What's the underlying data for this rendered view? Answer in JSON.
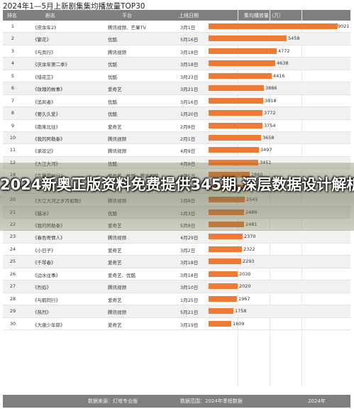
{
  "page_title": "2024年1—5月上新剧集集均播放量TOP30",
  "header": {
    "rank": "排名",
    "title": "剧名",
    "platform": "平台",
    "date": "上线日期",
    "metric": "集均播放量（万）"
  },
  "chart_data": {
    "type": "bar",
    "title": "2024年1—5月上新剧集集均播放量TOP30",
    "value_label": "集均播放量（万）",
    "xlim": [
      0,
      9021
    ],
    "rows": [
      {
        "rank": "1",
        "title": "《庆余年2》",
        "platform": "腾讯视频、芒果TV",
        "date": "3月1日",
        "value": 9021
      },
      {
        "rank": "2",
        "title": "《繁花》",
        "platform": "优酷",
        "date": "5月16日",
        "value": 5458
      },
      {
        "rank": "3",
        "title": "《与凤行》",
        "platform": "腾讯视频",
        "date": "3月18日",
        "value": 4772
      },
      {
        "rank": "4",
        "title": "《庆余年第二季》",
        "platform": "优酷",
        "date": "3月18日",
        "value": 4638
      },
      {
        "rank": "5",
        "title": "《惜花芷》",
        "platform": "优酷",
        "date": "3月23日",
        "value": 4416
      },
      {
        "rank": "6",
        "title": "《玫瑰的故事》",
        "platform": "爱奇艺",
        "date": "3月21日",
        "value": 3886
      },
      {
        "rank": "7",
        "title": "《追风者》",
        "platform": "优酷",
        "date": "3月16日",
        "value": 3818
      },
      {
        "rank": "8",
        "title": "《要久久爱》",
        "platform": "优酷",
        "date": "1月20日",
        "value": 3772
      },
      {
        "rank": "9",
        "title": "《南来北往》",
        "platform": "爱奇艺",
        "date": "2月8日",
        "value": 3754
      },
      {
        "rank": "10",
        "title": "《我的阿勒泰》",
        "platform": "腾讯视频",
        "date": "2月1日",
        "value": 3658
      },
      {
        "rank": "11",
        "title": "《承欢记》",
        "platform": "腾讯视频",
        "date": "4月9日",
        "value": 3497
      },
      {
        "rank": "12",
        "title": "《大江大河》",
        "platform": "优酷",
        "date": "4月9日",
        "value": 3451
      },
      {
        "rank": "18",
        "title": "《在暴雪时分》",
        "platform": "爱奇艺、优酷、腾讯视频",
        "date": "4月5日",
        "value": 2860
      },
      {
        "rank": "19",
        "title": "《我们的一九四四》",
        "platform": "爱奇艺",
        "date": "4月21日",
        "value": 2546
      },
      {
        "rank": "20",
        "title": "《大江大河之岁月如歌》",
        "platform": "腾讯视频",
        "date": "1月8日",
        "value": 2545
      },
      {
        "rank": "21",
        "title": "《猎冰》",
        "platform": "优酷",
        "date": "1月3日",
        "value": 2489
      },
      {
        "rank": "22",
        "title": "《我的阿勒泰》",
        "platform": "爱奇艺",
        "date": "5月8日",
        "value": 2481
      },
      {
        "rank": "23",
        "title": "《春色寄情人》",
        "platform": "腾讯视频",
        "date": "4月29日",
        "value": 2370
      },
      {
        "rank": "24",
        "title": "《小日子》",
        "platform": "爱奇艺",
        "date": "3月2日",
        "value": 2322
      },
      {
        "rank": "25",
        "title": "《千琴春》",
        "platform": "爱奇艺",
        "date": "3月18日",
        "value": 2293
      },
      {
        "rank": "26",
        "title": "《边水往事》",
        "platform": "爱奇艺、优酷",
        "date": "3月18日",
        "value": 2030
      },
      {
        "rank": "27",
        "title": "《烈焰》",
        "platform": "腾讯视频",
        "date": "3月10日",
        "value": 2020
      },
      {
        "rank": "28",
        "title": "《与鹤同行》",
        "platform": "爱奇艺",
        "date": "1月25日",
        "value": 1967
      },
      {
        "rank": "29",
        "title": "《热烈》",
        "platform": "腾讯视频",
        "date": "5月21日",
        "value": 1758
      },
      {
        "rank": "30",
        "title": "《大唐少年郎》",
        "platform": "爱奇艺",
        "date": "3月19日",
        "value": 1609
      }
    ]
  },
  "banner_text": "2024新奥正版资料免费提供345期,深层数据设计解析_超值",
  "footer": {
    "source": "数据来源：灯塔专业版",
    "scope": "数据范围：2024年季榜数据",
    "watermark": "2024年"
  }
}
